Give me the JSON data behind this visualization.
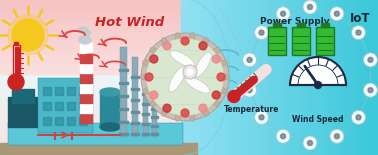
{
  "hot_wind_text": "Hot Wind",
  "hot_wind_color": "#cc2222",
  "iot_text": "IoT",
  "power_supply_text": "Power Supply",
  "temperature_text": "Temperature",
  "wind_speed_text": "Wind Speed",
  "sun_color": "#f5c820",
  "thermometer_red": "#cc2222",
  "battery_green": "#33bb33",
  "battery_border": "#227722",
  "gauge_dark": "#1a2a4a",
  "text_dark": "#1a2a3a",
  "left_top_color": "#f5b8b8",
  "left_mid_color": "#fad8d8",
  "left_bottom_color": "#daf0f4",
  "right_bg_color": "#3ac8d8",
  "right_light_color": "#7adde8",
  "factory_teal1": "#4ab8c8",
  "factory_teal2": "#2a8898",
  "factory_teal3": "#5ac8d8",
  "factory_dark": "#1a5868",
  "factory_gray": "#8aacb8",
  "chimney_red": "#cc4444",
  "smoke_color": "#b8ccd0",
  "ground_color": "#a89878",
  "wind_red": "#dd4444",
  "node_line_color": "#70c8d8",
  "node_fill": "#f0fafc",
  "blue_wind_color": "#60b8cc",
  "dev_outer": "#d8d0c8",
  "dev_inner": "#f0ece8"
}
